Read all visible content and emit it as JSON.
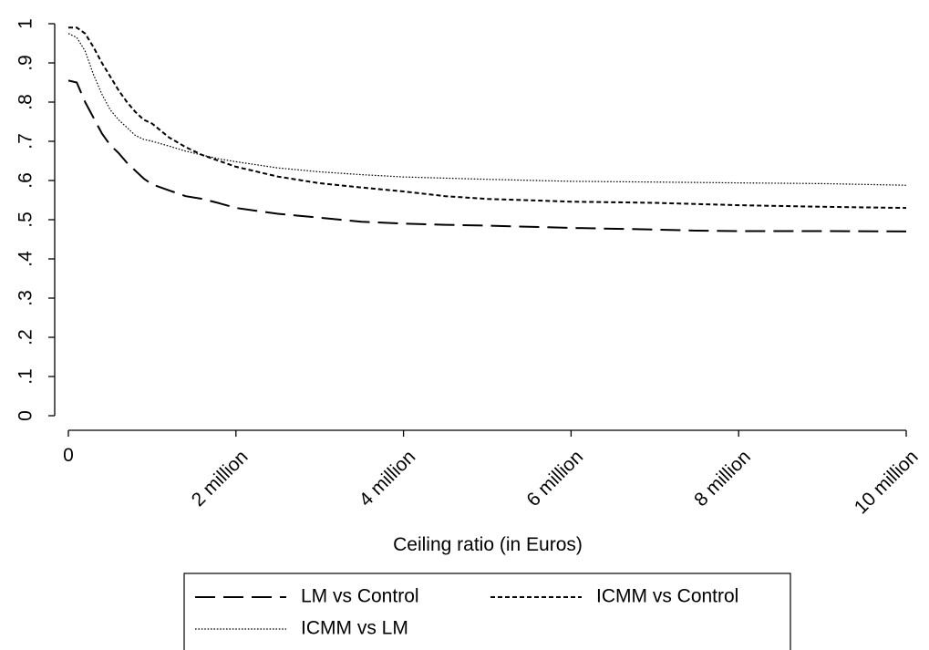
{
  "chart_data": {
    "type": "line",
    "title": "",
    "xlabel": "Ceiling ratio (in Euros)",
    "ylabel": "",
    "xlim": [
      0,
      10000000
    ],
    "ylim": [
      0,
      1
    ],
    "grid": false,
    "legend_position": "bottom",
    "x_ticks": [
      {
        "value": 0,
        "label": "0"
      },
      {
        "value": 2000000,
        "label": "2 million"
      },
      {
        "value": 4000000,
        "label": "4 million"
      },
      {
        "value": 6000000,
        "label": "6 million"
      },
      {
        "value": 8000000,
        "label": "8 million"
      },
      {
        "value": 10000000,
        "label": "10 million"
      }
    ],
    "y_ticks": [
      {
        "value": 0,
        "label": "0"
      },
      {
        "value": 0.1,
        "label": ".1"
      },
      {
        "value": 0.2,
        "label": ".2"
      },
      {
        "value": 0.3,
        "label": ".3"
      },
      {
        "value": 0.4,
        "label": ".4"
      },
      {
        "value": 0.5,
        "label": ".5"
      },
      {
        "value": 0.6,
        "label": ".6"
      },
      {
        "value": 0.7,
        "label": ".7"
      },
      {
        "value": 0.8,
        "label": ".8"
      },
      {
        "value": 0.9,
        "label": ".9"
      },
      {
        "value": 1,
        "label": "1"
      }
    ],
    "series": [
      {
        "name": "LM vs Control",
        "line_style": "long-dash",
        "color": "#000000",
        "points": [
          [
            0,
            0.855
          ],
          [
            100000,
            0.85
          ],
          [
            200000,
            0.8
          ],
          [
            300000,
            0.76
          ],
          [
            400000,
            0.72
          ],
          [
            500000,
            0.69
          ],
          [
            600000,
            0.67
          ],
          [
            700000,
            0.645
          ],
          [
            800000,
            0.625
          ],
          [
            900000,
            0.605
          ],
          [
            1000000,
            0.59
          ],
          [
            1200000,
            0.575
          ],
          [
            1400000,
            0.56
          ],
          [
            1600000,
            0.553
          ],
          [
            1800000,
            0.542
          ],
          [
            2000000,
            0.53
          ],
          [
            2500000,
            0.515
          ],
          [
            3000000,
            0.505
          ],
          [
            3500000,
            0.495
          ],
          [
            4000000,
            0.49
          ],
          [
            4500000,
            0.487
          ],
          [
            5000000,
            0.485
          ],
          [
            6000000,
            0.479
          ],
          [
            7000000,
            0.475
          ],
          [
            7500000,
            0.472
          ],
          [
            8000000,
            0.471
          ],
          [
            9000000,
            0.471
          ],
          [
            10000000,
            0.47
          ]
        ]
      },
      {
        "name": "ICMM vs Control",
        "line_style": "short-dash",
        "color": "#000000",
        "points": [
          [
            0,
            0.99
          ],
          [
            100000,
            0.99
          ],
          [
            200000,
            0.975
          ],
          [
            300000,
            0.94
          ],
          [
            400000,
            0.9
          ],
          [
            500000,
            0.865
          ],
          [
            600000,
            0.83
          ],
          [
            700000,
            0.8
          ],
          [
            800000,
            0.775
          ],
          [
            900000,
            0.755
          ],
          [
            1000000,
            0.745
          ],
          [
            1200000,
            0.71
          ],
          [
            1400000,
            0.685
          ],
          [
            1600000,
            0.665
          ],
          [
            1800000,
            0.65
          ],
          [
            2000000,
            0.635
          ],
          [
            2500000,
            0.61
          ],
          [
            3000000,
            0.593
          ],
          [
            3500000,
            0.582
          ],
          [
            4000000,
            0.572
          ],
          [
            4500000,
            0.56
          ],
          [
            5000000,
            0.553
          ],
          [
            6000000,
            0.546
          ],
          [
            7000000,
            0.543
          ],
          [
            8000000,
            0.537
          ],
          [
            9000000,
            0.533
          ],
          [
            10000000,
            0.53
          ]
        ]
      },
      {
        "name": "ICMM vs LM",
        "line_style": "dotted",
        "color": "#000000",
        "points": [
          [
            0,
            0.975
          ],
          [
            100000,
            0.965
          ],
          [
            200000,
            0.93
          ],
          [
            300000,
            0.87
          ],
          [
            400000,
            0.82
          ],
          [
            500000,
            0.78
          ],
          [
            600000,
            0.755
          ],
          [
            700000,
            0.735
          ],
          [
            800000,
            0.715
          ],
          [
            900000,
            0.705
          ],
          [
            1000000,
            0.7
          ],
          [
            1200000,
            0.688
          ],
          [
            1400000,
            0.675
          ],
          [
            1600000,
            0.665
          ],
          [
            1800000,
            0.655
          ],
          [
            2000000,
            0.648
          ],
          [
            2500000,
            0.632
          ],
          [
            3000000,
            0.622
          ],
          [
            3500000,
            0.615
          ],
          [
            4000000,
            0.609
          ],
          [
            5000000,
            0.603
          ],
          [
            6000000,
            0.598
          ],
          [
            7000000,
            0.596
          ],
          [
            8000000,
            0.594
          ],
          [
            9000000,
            0.592
          ],
          [
            10000000,
            0.588
          ]
        ]
      }
    ]
  }
}
